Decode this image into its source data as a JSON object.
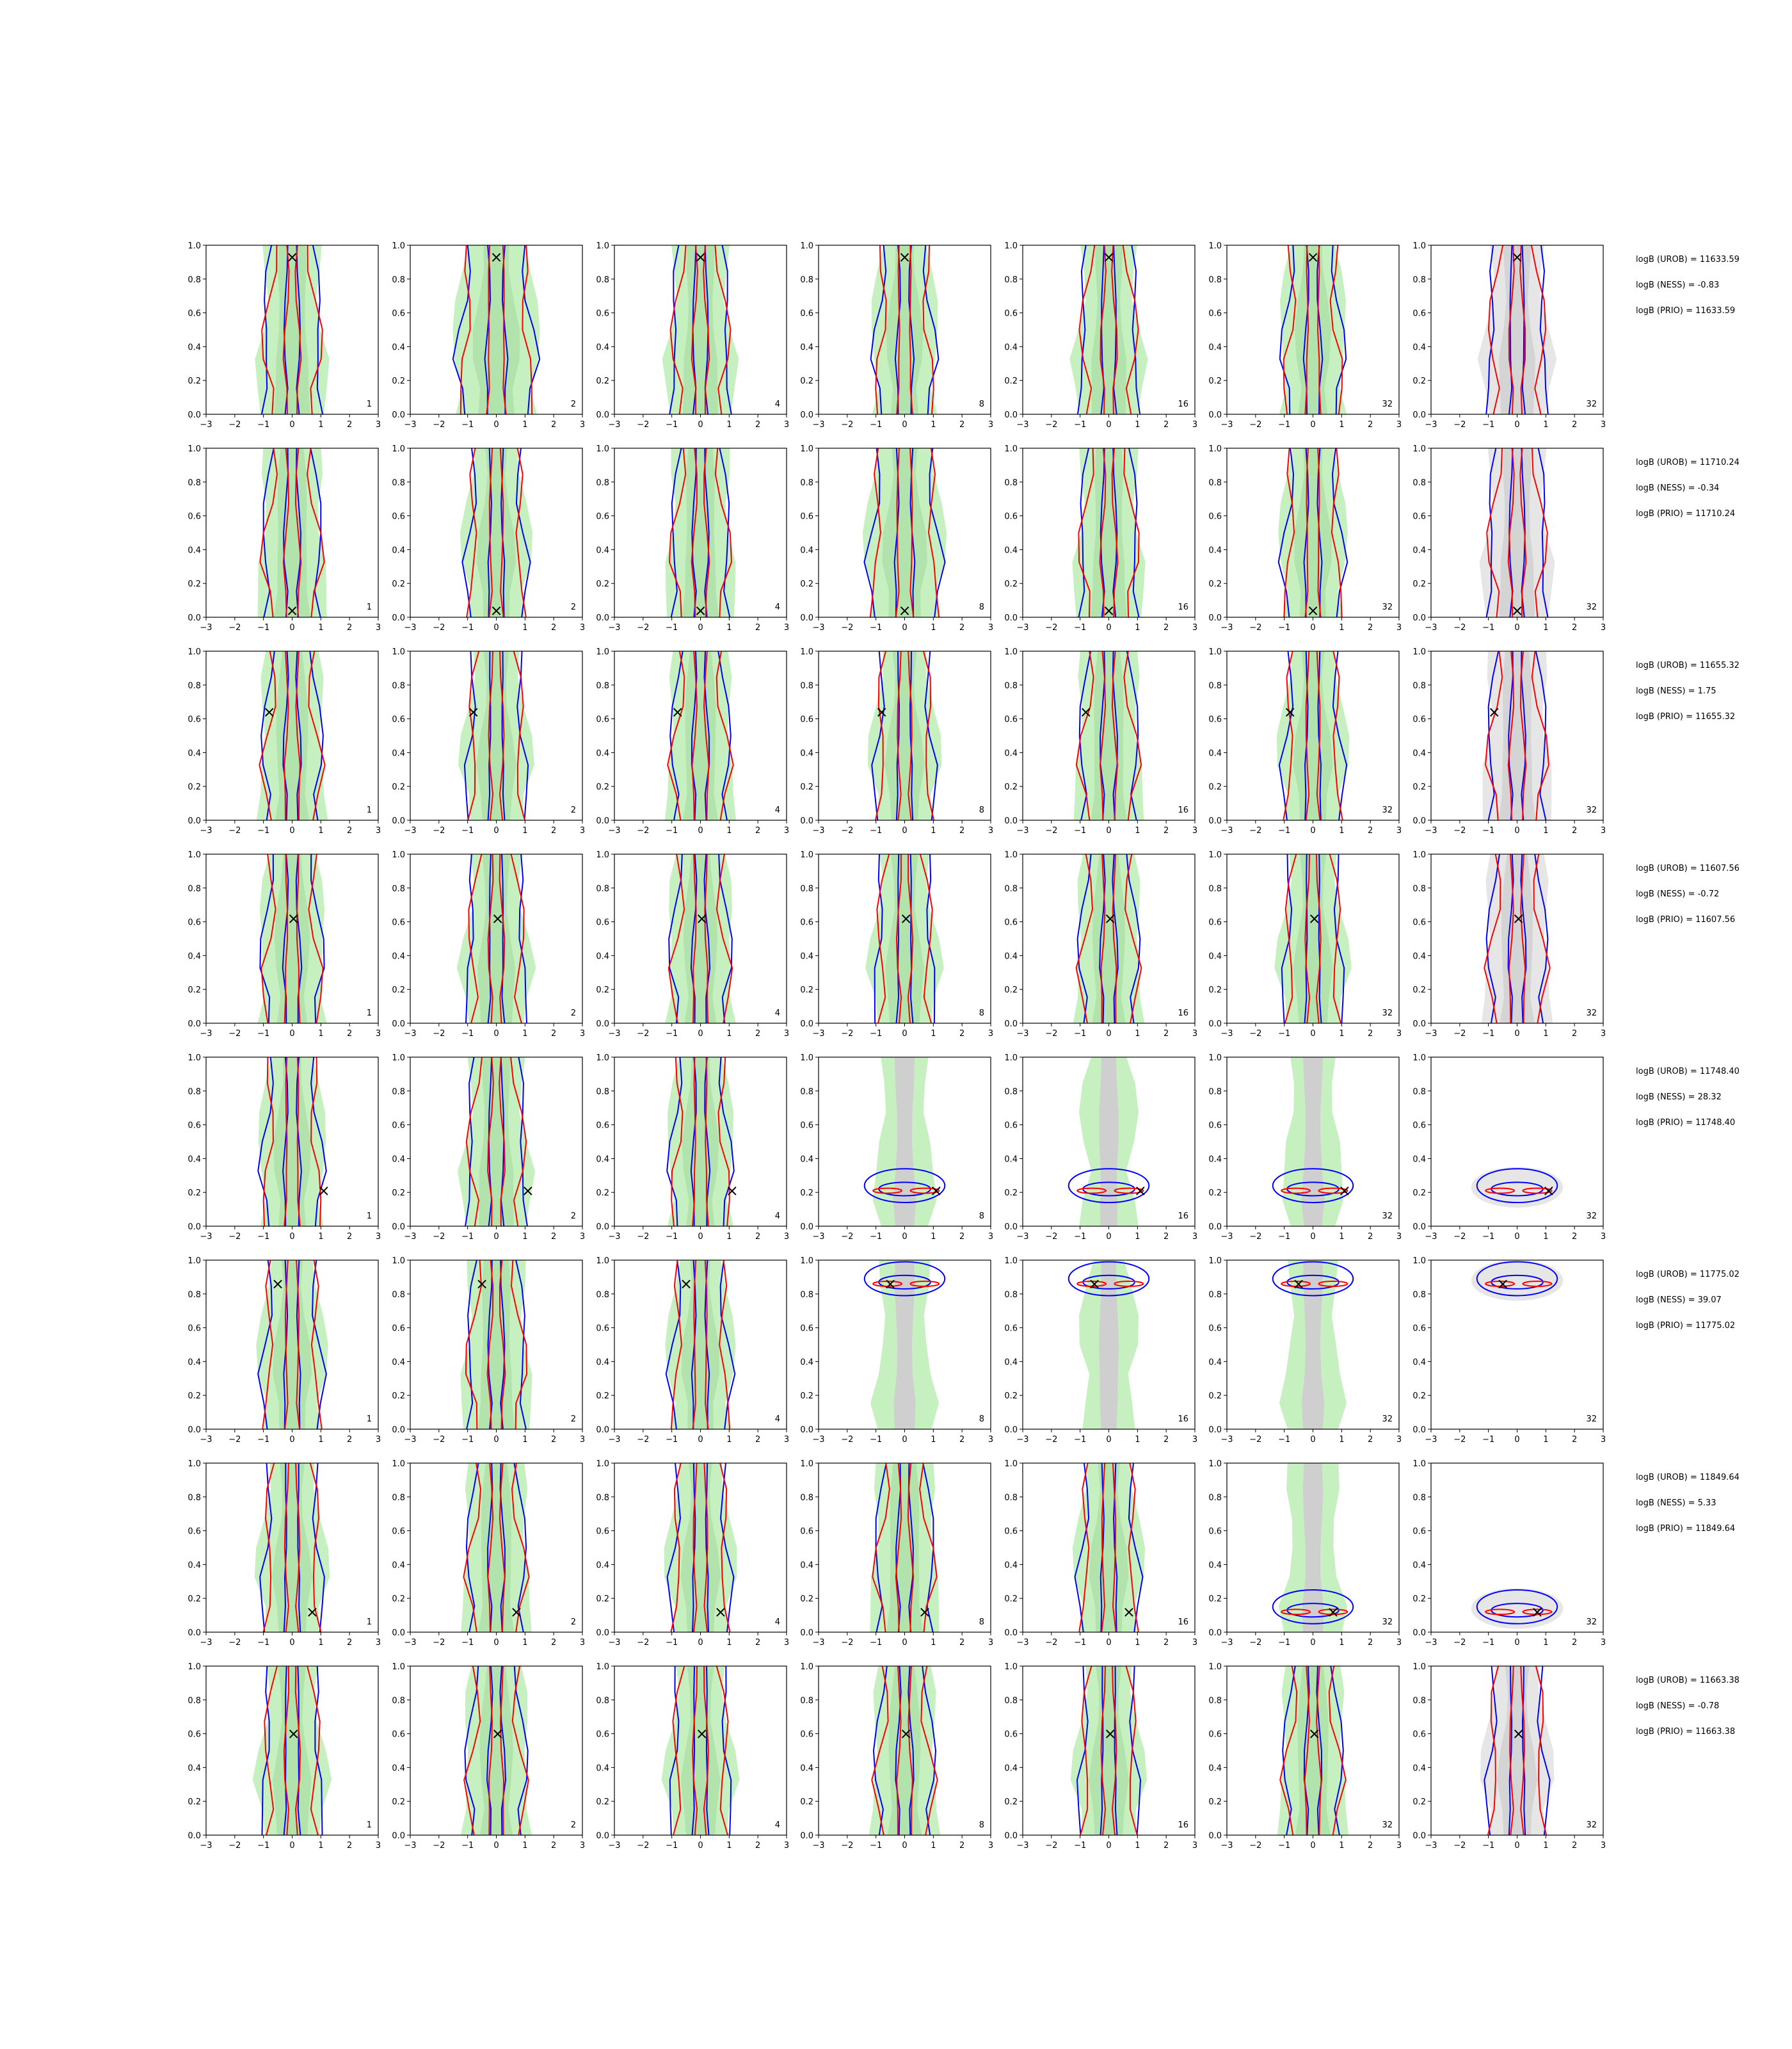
{
  "figure": {
    "colors": {
      "filled_green": "#c7f0c1",
      "filled_grey": "#e6e6e6",
      "contour_blue": "#0000ff",
      "contour_red": "#ff0000",
      "true_marker": "#000000"
    },
    "marker_symbol": "×",
    "x_ticks": [
      "−3",
      "−2",
      "−1",
      "0",
      "1",
      "2",
      "3"
    ],
    "y_ticks": [
      "0.0",
      "0.2",
      "0.4",
      "0.6",
      "0.8",
      "1.0"
    ],
    "column_labels": [
      "1",
      "2",
      "4",
      "8",
      "16",
      "32",
      "32"
    ]
  },
  "chart_data": {
    "type": "contour-grid",
    "title": "",
    "xlabel": "",
    "ylabel": "",
    "xlim": [
      -3,
      3
    ],
    "ylim": [
      0,
      1
    ],
    "grid": false,
    "rows": [
      {
        "marker": [
          0,
          0.93
        ],
        "shapes": [
          {
            "kind": "vert",
            "hw": [
              1,
              1,
              1,
              1,
              1,
              1,
              1
            ],
            "extra": []
          },
          {
            "kind": "vert",
            "hw": [
              1.3,
              1.3,
              1.3,
              1.3,
              1.3,
              1.3,
              1.3
            ],
            "extra": []
          },
          {
            "kind": "vert",
            "hw": [
              1,
              1,
              1,
              1,
              1,
              1,
              1
            ],
            "extra": []
          },
          {
            "kind": "vert",
            "hw": [
              1,
              1,
              1,
              1,
              1,
              1,
              1
            ],
            "extra": []
          },
          {
            "kind": "vert",
            "hw": [
              1,
              1,
              1,
              1,
              1,
              1,
              1
            ],
            "extra": []
          },
          {
            "kind": "vert",
            "hw": [
              1,
              1,
              1,
              1,
              1,
              1,
              1
            ],
            "extra": []
          },
          {
            "kind": "vert",
            "hw": [
              1,
              1,
              1,
              1,
              1,
              1,
              1
            ],
            "extra": []
          }
        ],
        "stats": {
          "urob": "logB (UROB) = 11633.59",
          "ness": "logB (NESS) = -0.83",
          "prio": "logB (PRIO) = 11633.59"
        }
      },
      {
        "marker": [
          0,
          0.04
        ],
        "shapes": [
          {
            "kind": "vert",
            "hw": [
              1,
              1,
              1,
              1,
              1,
              1,
              1
            ],
            "extra": []
          },
          {
            "kind": "vert",
            "hw": [
              1,
              1,
              1,
              1,
              1,
              1,
              1
            ],
            "extra": []
          },
          {
            "kind": "vert",
            "hw": [
              1,
              1,
              1,
              1,
              1,
              1,
              1
            ],
            "extra": []
          },
          {
            "kind": "vert",
            "hw": [
              1.2,
              1.2,
              1.2,
              1.2,
              1.2,
              1.2,
              1.2
            ],
            "extra": []
          },
          {
            "kind": "vert",
            "hw": [
              1,
              1,
              1,
              1,
              1,
              1,
              1
            ],
            "extra": []
          },
          {
            "kind": "vert",
            "hw": [
              1,
              1,
              1,
              1,
              1,
              1,
              1
            ],
            "extra": []
          },
          {
            "kind": "vert",
            "hw": [
              1,
              1,
              1,
              1,
              1,
              1,
              1
            ],
            "extra": []
          }
        ],
        "stats": {
          "urob": "logB (UROB) = 11710.24",
          "ness": "logB (NESS) = -0.34",
          "prio": "logB (PRIO) = 11710.24"
        }
      },
      {
        "marker": [
          -0.8,
          0.64
        ],
        "shapes": [
          {
            "kind": "vert",
            "hw": [
              1,
              1,
              1,
              1,
              1,
              1,
              1
            ],
            "extra": []
          },
          {
            "kind": "vert",
            "hw": [
              1,
              1,
              1,
              1,
              1,
              1,
              1
            ],
            "extra": []
          },
          {
            "kind": "vert",
            "hw": [
              1,
              1,
              1,
              1,
              1,
              1,
              1
            ],
            "extra": []
          },
          {
            "kind": "vert",
            "hw": [
              1,
              1,
              1,
              1,
              1,
              1,
              1
            ],
            "extra": []
          },
          {
            "kind": "vert",
            "hw": [
              1,
              1,
              1,
              1,
              1,
              1,
              1
            ],
            "extra": []
          },
          {
            "kind": "vert",
            "hw": [
              1,
              1,
              1,
              1,
              1,
              1,
              1
            ],
            "extra": []
          },
          {
            "kind": "vert",
            "hw": [
              1,
              1,
              1,
              1,
              1,
              1,
              1
            ],
            "extra": []
          }
        ],
        "stats": {
          "urob": "logB (UROB) = 11655.32",
          "ness": "logB (NESS) = 1.75",
          "prio": "logB (PRIO) = 11655.32"
        }
      },
      {
        "marker": [
          0.05,
          0.62
        ],
        "shapes": [
          {
            "kind": "vert",
            "hw": [
              1,
              1,
              1,
              1,
              1,
              1,
              1
            ],
            "extra": []
          },
          {
            "kind": "vert",
            "hw": [
              1,
              1,
              1,
              1,
              1,
              1,
              1
            ],
            "extra": []
          },
          {
            "kind": "vert",
            "hw": [
              1,
              1,
              1,
              1,
              1,
              1,
              1
            ],
            "extra": []
          },
          {
            "kind": "vert",
            "hw": [
              1,
              1,
              1,
              1,
              1,
              1,
              1
            ],
            "extra": []
          },
          {
            "kind": "vert",
            "hw": [
              1,
              1,
              1,
              1,
              1,
              1,
              1
            ],
            "extra": []
          },
          {
            "kind": "vert",
            "hw": [
              1,
              1,
              1,
              1,
              1,
              1,
              1
            ],
            "extra": []
          },
          {
            "kind": "vert",
            "hw": [
              1,
              1,
              1,
              1,
              1,
              1,
              1
            ],
            "extra": []
          }
        ],
        "stats": {
          "urob": "logB (UROB) = 11607.56",
          "ness": "logB (NESS) = -0.72",
          "prio": "logB (PRIO) = 11607.56"
        }
      },
      {
        "marker": [
          1.1,
          0.21
        ],
        "shapes": [
          {
            "kind": "vert",
            "hw": [
              1,
              1,
              1,
              1,
              1,
              1,
              1
            ],
            "extra": []
          },
          {
            "kind": "vert",
            "hw": [
              1,
              1,
              1,
              1,
              1,
              1,
              1
            ],
            "extra": []
          },
          {
            "kind": "vert",
            "hw": [
              1,
              1,
              1,
              1,
              1,
              1,
              1
            ],
            "extra": []
          },
          {
            "kind": "blobs",
            "hw": [
              1,
              1,
              1,
              1,
              1,
              1,
              1
            ],
            "extra": []
          },
          {
            "kind": "blobs",
            "hw": [
              1,
              1,
              1,
              1,
              1,
              1,
              1
            ],
            "extra": []
          },
          {
            "kind": "blobs",
            "hw": [
              1,
              1,
              1,
              1,
              1,
              1,
              1
            ],
            "extra": []
          },
          {
            "kind": "blobs",
            "hw": [
              1,
              1,
              1,
              1,
              1,
              1,
              1
            ],
            "extra": []
          }
        ],
        "stats": {
          "urob": "logB (UROB) = 11748.40",
          "ness": "logB (NESS) = 28.32",
          "prio": "logB (PRIO) = 11748.40"
        }
      },
      {
        "marker": [
          -0.5,
          0.86
        ],
        "shapes": [
          {
            "kind": "vert",
            "hw": [
              1,
              1,
              1,
              1,
              1,
              1,
              1
            ],
            "extra": []
          },
          {
            "kind": "vert",
            "hw": [
              1,
              1,
              1,
              1,
              1,
              1,
              1
            ],
            "extra": []
          },
          {
            "kind": "vert",
            "hw": [
              1,
              1,
              1,
              1,
              1,
              1,
              1
            ],
            "extra": []
          },
          {
            "kind": "blobs",
            "hw": [
              1,
              1,
              1,
              1,
              1,
              1,
              1
            ],
            "extra": []
          },
          {
            "kind": "blobs",
            "hw": [
              1,
              1,
              1,
              1,
              1,
              1,
              1
            ],
            "extra": []
          },
          {
            "kind": "blobs",
            "hw": [
              1,
              1,
              1,
              1,
              1,
              1,
              1
            ],
            "extra": []
          },
          {
            "kind": "blobs",
            "hw": [
              1,
              1,
              1,
              1,
              1,
              1,
              1
            ],
            "extra": []
          }
        ],
        "stats": {
          "urob": "logB (UROB) = 11775.02",
          "ness": "logB (NESS) = 39.07",
          "prio": "logB (PRIO) = 11775.02"
        }
      },
      {
        "marker": [
          0.7,
          0.12
        ],
        "shapes": [
          {
            "kind": "vert",
            "hw": [
              1,
              1,
              1,
              1,
              1,
              1,
              1
            ],
            "extra": []
          },
          {
            "kind": "vert",
            "hw": [
              1,
              1,
              1,
              1,
              1,
              1,
              1
            ],
            "extra": []
          },
          {
            "kind": "vert",
            "hw": [
              1,
              1,
              1,
              1,
              1,
              1,
              1
            ],
            "extra": []
          },
          {
            "kind": "vert",
            "hw": [
              1,
              1,
              1,
              1,
              1,
              1,
              1
            ],
            "extra": []
          },
          {
            "kind": "vert",
            "hw": [
              1,
              1,
              1,
              1,
              1,
              1,
              1
            ],
            "extra": []
          },
          {
            "kind": "blobs",
            "hw": [
              1,
              1,
              1,
              1,
              1,
              1,
              1
            ],
            "extra": []
          },
          {
            "kind": "blobs",
            "hw": [
              1,
              1,
              1,
              1,
              1,
              1,
              1
            ],
            "extra": []
          }
        ],
        "stats": {
          "urob": "logB (UROB) = 11849.64",
          "ness": "logB (NESS) = 5.33",
          "prio": "logB (PRIO) = 11849.64"
        }
      },
      {
        "marker": [
          0.05,
          0.6
        ],
        "shapes": [
          {
            "kind": "vert",
            "hw": [
              1,
              1,
              1,
              1,
              1,
              1,
              1
            ],
            "extra": []
          },
          {
            "kind": "vert",
            "hw": [
              1,
              1,
              1,
              1,
              1,
              1,
              1
            ],
            "extra": []
          },
          {
            "kind": "vert",
            "hw": [
              1,
              1,
              1,
              1,
              1,
              1,
              1
            ],
            "extra": []
          },
          {
            "kind": "vert",
            "hw": [
              1,
              1,
              1,
              1,
              1,
              1,
              1
            ],
            "extra": []
          },
          {
            "kind": "vert",
            "hw": [
              1,
              1,
              1,
              1,
              1,
              1,
              1
            ],
            "extra": []
          },
          {
            "kind": "vert",
            "hw": [
              1,
              1,
              1,
              1,
              1,
              1,
              1
            ],
            "extra": []
          },
          {
            "kind": "vert",
            "hw": [
              1,
              1,
              1,
              1,
              1,
              1,
              1
            ],
            "extra": []
          }
        ],
        "stats": {
          "urob": "logB (UROB) = 11663.38",
          "ness": "logB (NESS) = -0.78",
          "prio": "logB (PRIO) = 11663.38"
        }
      }
    ]
  }
}
